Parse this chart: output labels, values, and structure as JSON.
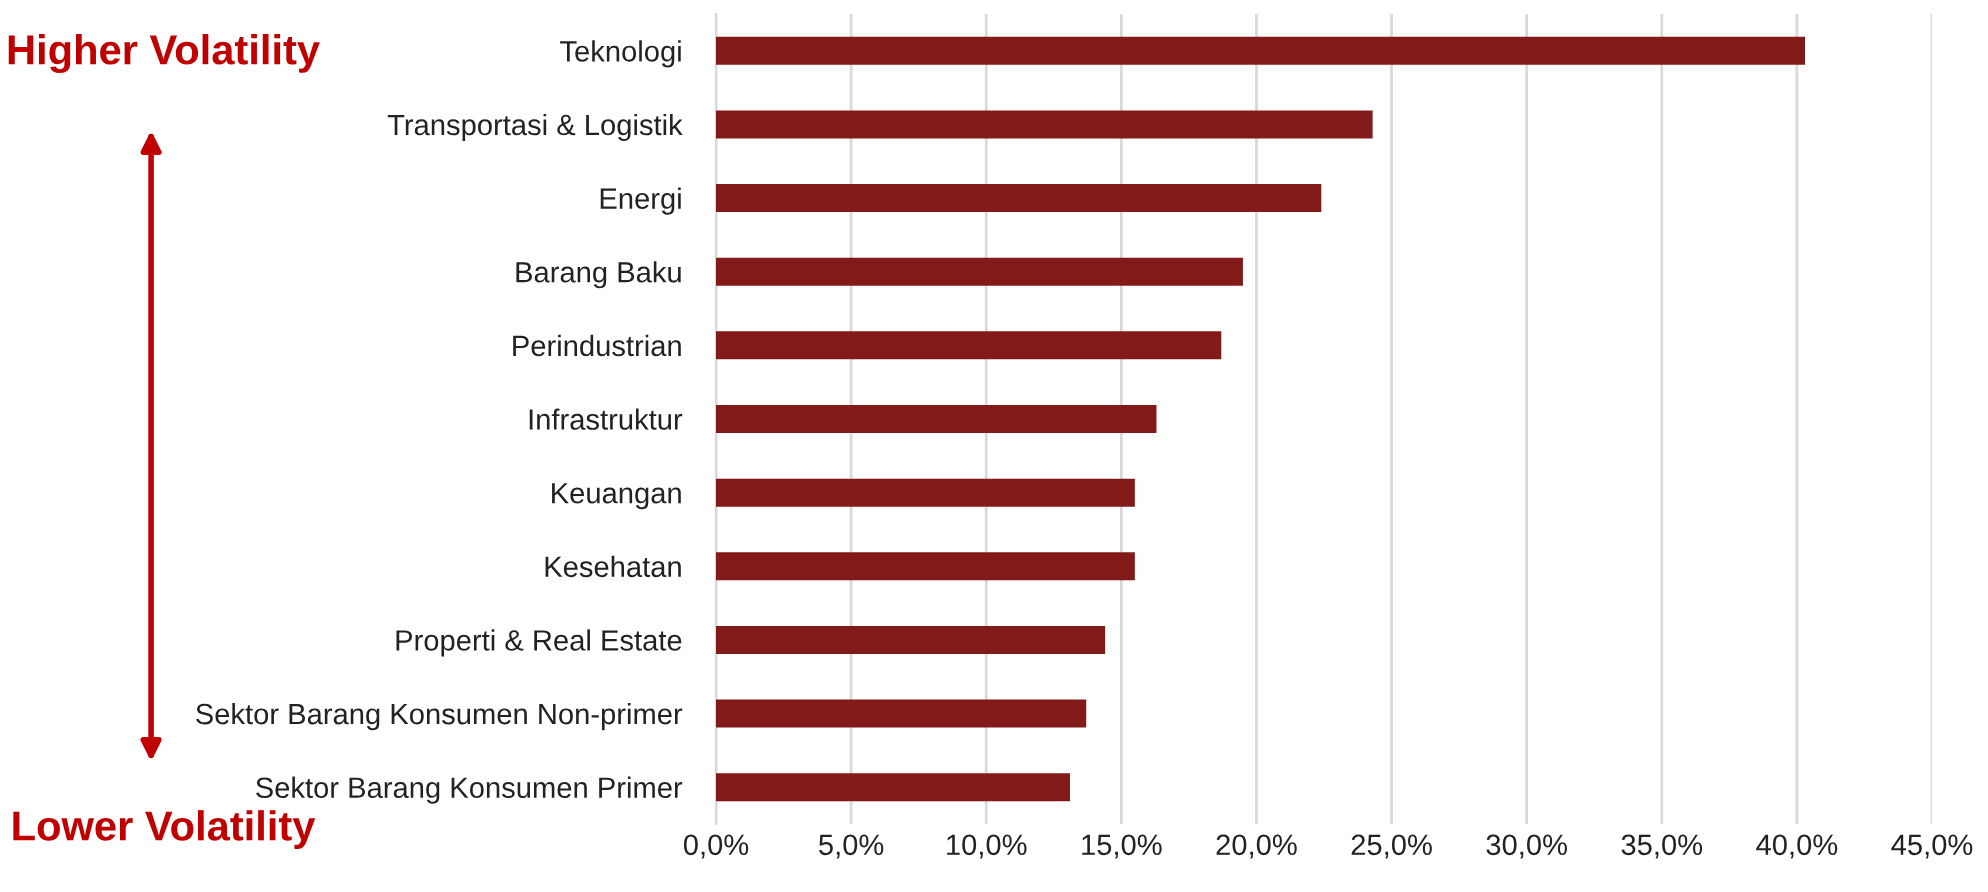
{
  "chart_data": {
    "type": "bar",
    "orientation": "horizontal",
    "categories": [
      "Teknologi",
      "Transportasi & Logistik",
      "Energi",
      "Barang Baku",
      "Perindustrian",
      "Infrastruktur",
      "Keuangan",
      "Kesehatan",
      "Properti & Real Estate",
      "Sektor Barang Konsumen Non-primer",
      "Sektor Barang Konsumen Primer"
    ],
    "values": [
      40.3,
      24.3,
      22.4,
      19.5,
      18.7,
      16.3,
      15.5,
      15.5,
      14.4,
      13.7,
      13.1
    ],
    "color": "#831a1a",
    "xlim": [
      0,
      45
    ],
    "xticks": [
      {
        "value": 0,
        "label": "0,0%"
      },
      {
        "value": 5,
        "label": "5,0%"
      },
      {
        "value": 10,
        "label": "10,0%"
      },
      {
        "value": 15,
        "label": "15,0%"
      },
      {
        "value": 20,
        "label": "20,0%"
      },
      {
        "value": 25,
        "label": "25,0%"
      },
      {
        "value": 30,
        "label": "30,0%"
      },
      {
        "value": 35,
        "label": "35,0%"
      },
      {
        "value": 40,
        "label": "40,0%"
      },
      {
        "value": 45,
        "label": "45,0%"
      }
    ],
    "grid": "x",
    "annotations": [
      "Higher Volatility",
      "Lower Volatility"
    ]
  }
}
